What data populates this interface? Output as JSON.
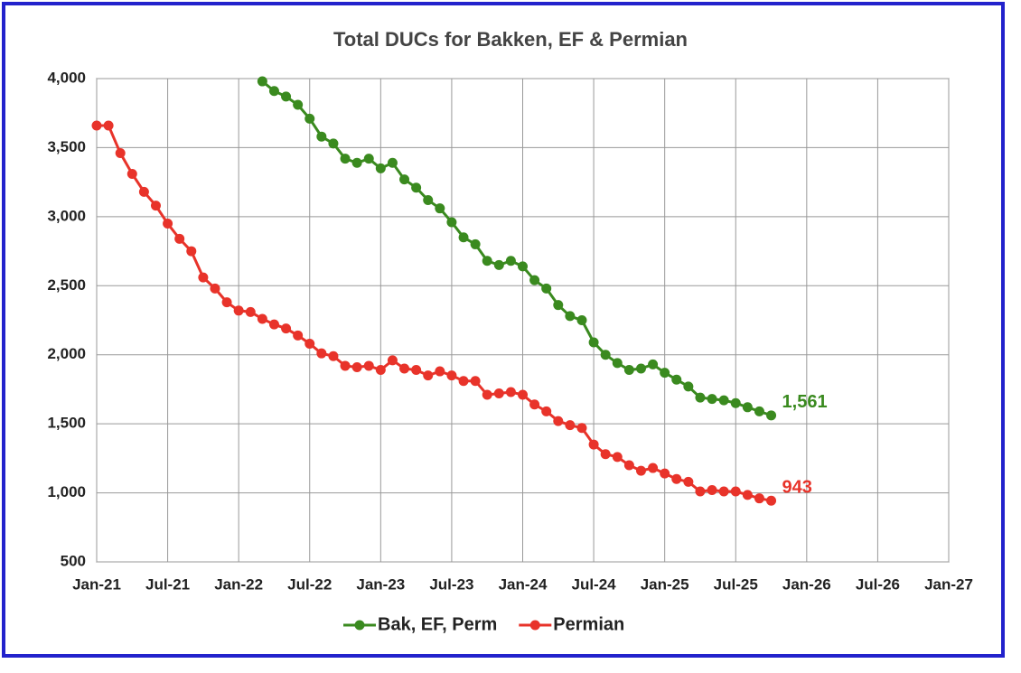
{
  "chart_data": {
    "type": "line",
    "title": "Total DUCs for Bakken, EF & Permian",
    "x": [
      "2021-01",
      "2021-02",
      "2021-03",
      "2021-04",
      "2021-05",
      "2021-06",
      "2021-07",
      "2021-08",
      "2021-09",
      "2021-10",
      "2021-11",
      "2021-12",
      "2022-01",
      "2022-02",
      "2022-03",
      "2022-04",
      "2022-05",
      "2022-06",
      "2022-07",
      "2022-08",
      "2022-09",
      "2022-10",
      "2022-11",
      "2022-12",
      "2023-01",
      "2023-02",
      "2023-03",
      "2023-04",
      "2023-05",
      "2023-06",
      "2023-07",
      "2023-08",
      "2023-09",
      "2023-10",
      "2023-11",
      "2023-12",
      "2024-01",
      "2024-02",
      "2024-03",
      "2024-04",
      "2024-05",
      "2024-06",
      "2024-07",
      "2024-08",
      "2024-09",
      "2024-10",
      "2024-11",
      "2024-12",
      "2025-01",
      "2025-02",
      "2025-03",
      "2025-04",
      "2025-05",
      "2025-06",
      "2025-07",
      "2025-08",
      "2025-09",
      "2025-10"
    ],
    "series": [
      {
        "name": "Bak, EF, Perm",
        "color": "#3a8a1f",
        "values": [
          null,
          null,
          null,
          null,
          null,
          null,
          null,
          null,
          null,
          null,
          null,
          null,
          null,
          null,
          3980,
          3910,
          3870,
          3810,
          3710,
          3580,
          3530,
          3420,
          3390,
          3420,
          3350,
          3390,
          3270,
          3210,
          3120,
          3060,
          2960,
          2850,
          2800,
          2680,
          2650,
          2680,
          2640,
          2540,
          2480,
          2360,
          2280,
          2250,
          2090,
          2000,
          1940,
          1890,
          1900,
          1930,
          1870,
          1820,
          1770,
          1690,
          1680,
          1670,
          1650,
          1620,
          1590,
          1561
        ],
        "value_labels": [
          null,
          null,
          null,
          null,
          null,
          null,
          null,
          null,
          null,
          null,
          null,
          null,
          null,
          null,
          null,
          null,
          null,
          null,
          null,
          null,
          null,
          null,
          null,
          null,
          null,
          null,
          null,
          null,
          null,
          null,
          null,
          null,
          null,
          null,
          null,
          null,
          null,
          null,
          null,
          null,
          null,
          null,
          null,
          null,
          null,
          null,
          null,
          null,
          null,
          null,
          null,
          null,
          null,
          null,
          null,
          null,
          null,
          "1,561"
        ]
      },
      {
        "name": "Permian",
        "color": "#e8332a",
        "values": [
          3660,
          3660,
          3460,
          3310,
          3180,
          3080,
          2950,
          2840,
          2750,
          2560,
          2480,
          2380,
          2320,
          2310,
          2260,
          2220,
          2190,
          2140,
          2080,
          2010,
          1990,
          1920,
          1910,
          1920,
          1890,
          1960,
          1900,
          1890,
          1850,
          1880,
          1850,
          1810,
          1810,
          1710,
          1720,
          1730,
          1710,
          1640,
          1590,
          1520,
          1490,
          1470,
          1350,
          1280,
          1260,
          1200,
          1160,
          1180,
          1140,
          1100,
          1080,
          1010,
          1020,
          1010,
          1010,
          985,
          960,
          943
        ],
        "value_labels": [
          null,
          null,
          null,
          null,
          null,
          null,
          null,
          null,
          null,
          null,
          null,
          null,
          null,
          null,
          null,
          null,
          null,
          null,
          null,
          null,
          null,
          null,
          null,
          null,
          null,
          null,
          null,
          null,
          null,
          null,
          null,
          null,
          null,
          null,
          null,
          null,
          null,
          null,
          null,
          null,
          null,
          null,
          null,
          null,
          null,
          null,
          null,
          null,
          null,
          null,
          null,
          null,
          null,
          null,
          null,
          null,
          null,
          "943"
        ]
      }
    ],
    "xlim": [
      "2021-01",
      "2027-01"
    ],
    "xticks": [
      {
        "value": "2021-01",
        "label": "Jan-21"
      },
      {
        "value": "2021-07",
        "label": "Jul-21"
      },
      {
        "value": "2022-01",
        "label": "Jan-22"
      },
      {
        "value": "2022-07",
        "label": "Jul-22"
      },
      {
        "value": "2023-01",
        "label": "Jan-23"
      },
      {
        "value": "2023-07",
        "label": "Jul-23"
      },
      {
        "value": "2024-01",
        "label": "Jan-24"
      },
      {
        "value": "2024-07",
        "label": "Jul-24"
      },
      {
        "value": "2025-01",
        "label": "Jan-25"
      },
      {
        "value": "2025-07",
        "label": "Jul-25"
      },
      {
        "value": "2026-01",
        "label": "Jan-26"
      },
      {
        "value": "2026-07",
        "label": "Jul-26"
      },
      {
        "value": "2027-01",
        "label": "Jan-27"
      }
    ],
    "ylim": [
      500,
      4000
    ],
    "yticks": [
      500,
      {
        "value": 1000,
        "label": "1,000"
      },
      {
        "value": 1500,
        "label": "1,500"
      },
      {
        "value": 2000,
        "label": "2,000"
      },
      {
        "value": 2500,
        "label": "2,500"
      },
      {
        "value": 3000,
        "label": "3,000"
      },
      {
        "value": 3500,
        "label": "3,500"
      },
      {
        "value": 4000,
        "label": "4,000"
      }
    ],
    "grid": true,
    "legend": "bottom"
  }
}
